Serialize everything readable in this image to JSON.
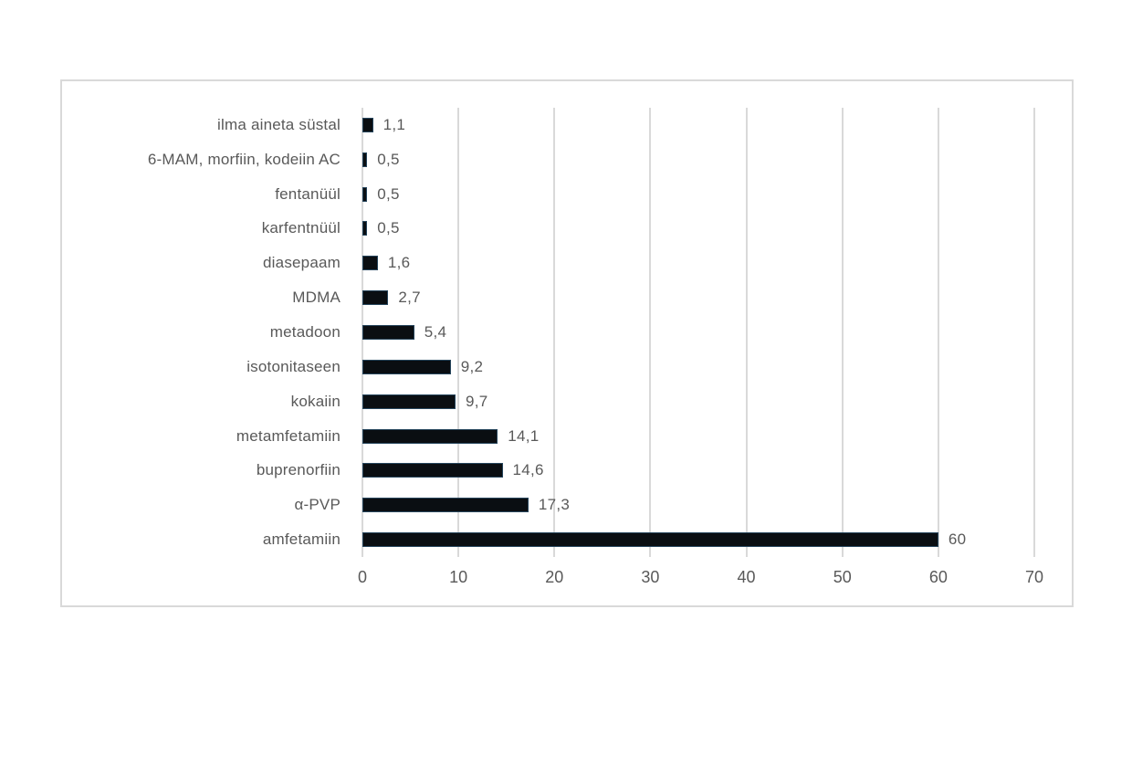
{
  "chart_data": {
    "type": "bar",
    "orientation": "horizontal",
    "title": "",
    "xlabel": "",
    "ylabel": "",
    "categories": [
      "ilma aineta süstal",
      "6-MAM, morfiin, kodeiin AC",
      "fentanüül",
      "karfentnüül",
      "diasepaam",
      "MDMA",
      "metadoon",
      "isotonitaseen",
      "kokaiin",
      "metamfetamiin",
      "buprenorfiin",
      "α-PVP",
      "amfetamiin"
    ],
    "values": [
      1.1,
      0.5,
      0.5,
      0.5,
      1.6,
      2.7,
      5.4,
      9.2,
      9.7,
      14.1,
      14.6,
      17.3,
      60
    ],
    "value_labels": [
      "1,1",
      "0,5",
      "0,5",
      "0,5",
      "1,6",
      "2,7",
      "5,4",
      "9,2",
      "9,7",
      "14,1",
      "14,6",
      "17,3",
      "60"
    ],
    "xlim": [
      0,
      70
    ],
    "x_ticks": [
      0,
      10,
      20,
      30,
      40,
      50,
      60,
      70
    ],
    "grid": true,
    "legend": false,
    "bar_color": "#0a0e12",
    "bar_border_color": "#26455c",
    "gridline_color": "#d9d9d9",
    "text_color": "#595959",
    "plot_border_color": "#d9d9d9"
  }
}
